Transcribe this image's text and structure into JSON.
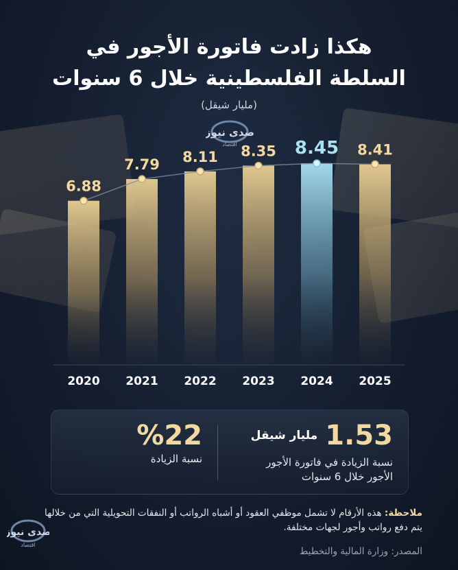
{
  "title": {
    "line1": "هكذا زادت فاتورة الأجور في",
    "line2": "السلطة الفلسطينية خلال 6 سنوات"
  },
  "unit_note": "(مليار شيقل)",
  "brand": {
    "logo_text": "صدى نيوز",
    "logo_sub": "اقتصاد"
  },
  "colors": {
    "bar_gold": "#e9cf93",
    "bar_highlight": "#a9e2f2",
    "accent_text": "#f3d9a0",
    "background": "#141e2f"
  },
  "chart_data": {
    "type": "bar",
    "categories": [
      "2020",
      "2021",
      "2022",
      "2023",
      "2024",
      "2025"
    ],
    "values": [
      6.88,
      7.79,
      8.11,
      8.35,
      8.45,
      8.41
    ],
    "value_labels": [
      "6.88",
      "7.79",
      "8.11",
      "8.35",
      "8.45",
      "8.41"
    ],
    "highlight_index": 4,
    "trend_line": true,
    "grid": false,
    "ylim": [
      0,
      9.2
    ]
  },
  "stats": {
    "main_value": "1.53",
    "main_unit": "مليار شيقل",
    "main_desc_line1": "نسبة الزيادة في فاتورة الأجور",
    "main_desc_line2": "الأجور خلال 6 سنوات",
    "pct_value": "%22",
    "pct_desc": "نسبة الزيادة"
  },
  "note": {
    "label": "ملاحظة:",
    "text": "هذه الأرقام لا تشمل موظفي العقود أو أشباه الرواتب أو النفقات التحويلية التي من خلالها يتم دفع رواتب وأجور لجهات مختلفة."
  },
  "source": "المصدر: وزارة المالية والتخطيط"
}
